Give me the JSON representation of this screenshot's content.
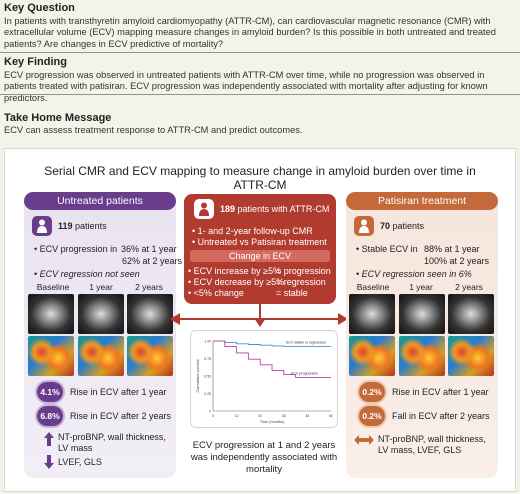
{
  "key_question": {
    "heading": "Key Question",
    "text": "In patients with transthyretin amyloid cardiomyopathy (ATTR-CM), can cardiovascular magnetic resonance (CMR) with extracellular volume (ECV) mapping measure changes in amyloid burden? Is this possible in both untreated and treated patients? Are changes in ECV predictive of mortality?"
  },
  "key_finding": {
    "heading": "Key Finding",
    "text": "ECV progression was observed in untreated patients with ATTR-CM over time, while no progression was observed in patients treated with patisiran. ECV progression was independently associated with mortality after adjusting for known predictors."
  },
  "take_home": {
    "heading": "Take Home Message",
    "text": "ECV can assess treatment response to ATTR-CM and predict outcomes."
  },
  "figure": {
    "title": "Serial CMR and ECV mapping to measure change in amyloid burden over time in ATTR-CM",
    "untreated": {
      "header": "Untreated patients",
      "count": "119",
      "count_label": "patients",
      "prog_label": "• ECV progression in",
      "prog_1yr": "36% at 1 year",
      "prog_2yr": "62% at 2 years",
      "regression": "• ECV regression not seen",
      "img_labels": [
        "Baseline",
        "1 year",
        "2 years"
      ],
      "rise1_val": "4.1%",
      "rise1_label": "Rise in ECV after 1 year",
      "rise2_val": "6.8%",
      "rise2_label": "Rise in ECV after 2 years",
      "up_text1": "NT-proBNP, wall thickness,",
      "up_text2": "LV mass",
      "down_text": "LVEF, GLS"
    },
    "center": {
      "count": "189",
      "count_label": "patients with ATTR-CM",
      "bullet1": "• 1- and 2-year follow-up CMR",
      "bullet2": "• Untreated vs Patisiran treatment",
      "change_header": "Change in ECV",
      "row1_a": "• ECV increase by ≥5%",
      "row1_b": "= progression",
      "row2_a": "• ECV decrease by ≥5%",
      "row2_b": "= regression",
      "row3_a": "• <5% change",
      "row3_b": "= stable",
      "caption": "ECV progression at 1 and 2 years was independently associated with mortality"
    },
    "patisiran": {
      "header": "Patisiran treatment",
      "count": "70",
      "count_label": "patients",
      "stable_label": "• Stable ECV in",
      "stable_1yr": "88% at 1 year",
      "stable_2yr": "100% at 2 years",
      "regression": "• ECV regression seen in 6%",
      "img_labels": [
        "Baseline",
        "1 year",
        "2 years"
      ],
      "rise1_val": "0.2%",
      "rise1_label": "Rise in ECV after 1 year",
      "fall2_val": "0.2%",
      "fall2_label": "Fall in ECV after 2 years",
      "lr_text1": "NT-proBNP, wall thickness,",
      "lr_text2": "LV mass, LVEF, GLS"
    }
  },
  "chart_data": {
    "type": "line",
    "xlabel": "Time (months)",
    "ylabel": "Cumulative survival",
    "x_ticks": [
      "0",
      "12",
      "24",
      "36",
      "48",
      "60"
    ],
    "y_ticks": [
      "1.00",
      "0.75",
      "0.50",
      "0.25",
      "0"
    ],
    "series": [
      {
        "name": "ECV stable or regression",
        "x": [
          0,
          6,
          12,
          18,
          24,
          30,
          36,
          42,
          48,
          54,
          60
        ],
        "values": [
          1.0,
          0.98,
          0.96,
          0.95,
          0.94,
          0.93,
          0.92,
          0.92,
          0.92,
          0.92,
          0.92
        ]
      },
      {
        "name": "ECV progression",
        "x": [
          0,
          6,
          12,
          18,
          24,
          30,
          36,
          42,
          48,
          54,
          60
        ],
        "values": [
          1.0,
          0.92,
          0.83,
          0.74,
          0.66,
          0.58,
          0.52,
          0.48,
          0.48,
          0.48,
          0.48
        ]
      }
    ],
    "colors": [
      "#4a90c8",
      "#c040a0"
    ]
  }
}
